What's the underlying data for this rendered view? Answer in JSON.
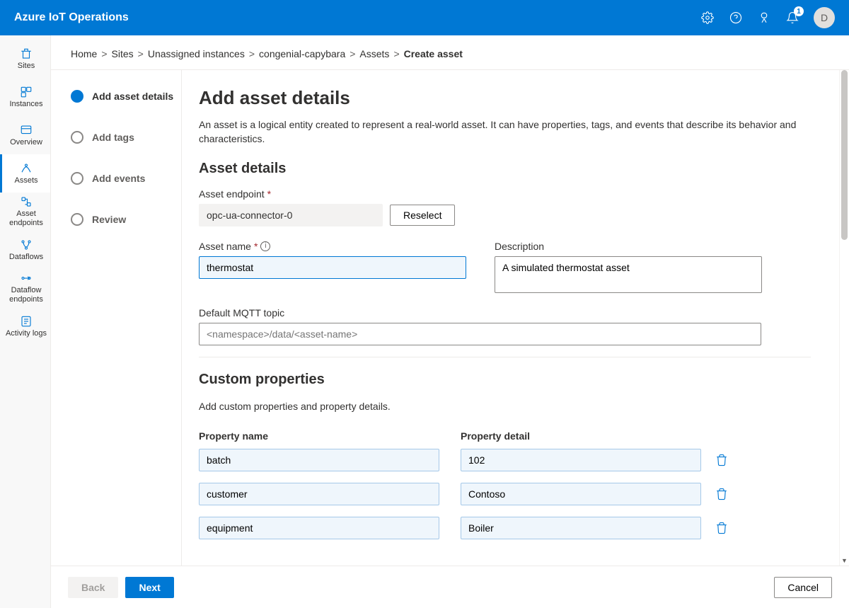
{
  "header": {
    "title": "Azure IoT Operations",
    "notification_count": "1",
    "avatar_letter": "D"
  },
  "sidebar": [
    {
      "name": "sites",
      "label": "Sites"
    },
    {
      "name": "instances",
      "label": "Instances"
    },
    {
      "name": "overview",
      "label": "Overview"
    },
    {
      "name": "assets",
      "label": "Assets"
    },
    {
      "name": "asset-endpoints",
      "label": "Asset endpoints"
    },
    {
      "name": "dataflows",
      "label": "Dataflows"
    },
    {
      "name": "dataflow-endpoints",
      "label": "Dataflow endpoints"
    },
    {
      "name": "activity-logs",
      "label": "Activity logs"
    }
  ],
  "breadcrumb": {
    "items": [
      "Home",
      "Sites",
      "Unassigned instances",
      "congenial-capybara",
      "Assets"
    ],
    "current": "Create asset"
  },
  "steps": [
    {
      "label": "Add asset details",
      "active": true
    },
    {
      "label": "Add tags",
      "active": false
    },
    {
      "label": "Add events",
      "active": false
    },
    {
      "label": "Review",
      "active": false
    }
  ],
  "page": {
    "title": "Add asset details",
    "intro": "An asset is a logical entity created to represent a real-world asset. It can have properties, tags, and events that describe its behavior and characteristics.",
    "section1_title": "Asset details",
    "endpoint_label": "Asset endpoint",
    "endpoint_value": "opc-ua-connector-0",
    "reselect_label": "Reselect",
    "name_label": "Asset name",
    "name_value": "thermostat",
    "desc_label": "Description",
    "desc_value": "A simulated thermostat asset",
    "mqtt_label": "Default MQTT topic",
    "mqtt_placeholder": "<namespace>/data/<asset-name>",
    "section2_title": "Custom properties",
    "section2_desc": "Add custom properties and property details.",
    "prop_header_name": "Property name",
    "prop_header_detail": "Property detail",
    "properties": [
      {
        "name": "batch",
        "detail": "102"
      },
      {
        "name": "customer",
        "detail": "Contoso"
      },
      {
        "name": "equipment",
        "detail": "Boiler"
      }
    ]
  },
  "footer": {
    "back": "Back",
    "next": "Next",
    "cancel": "Cancel"
  }
}
